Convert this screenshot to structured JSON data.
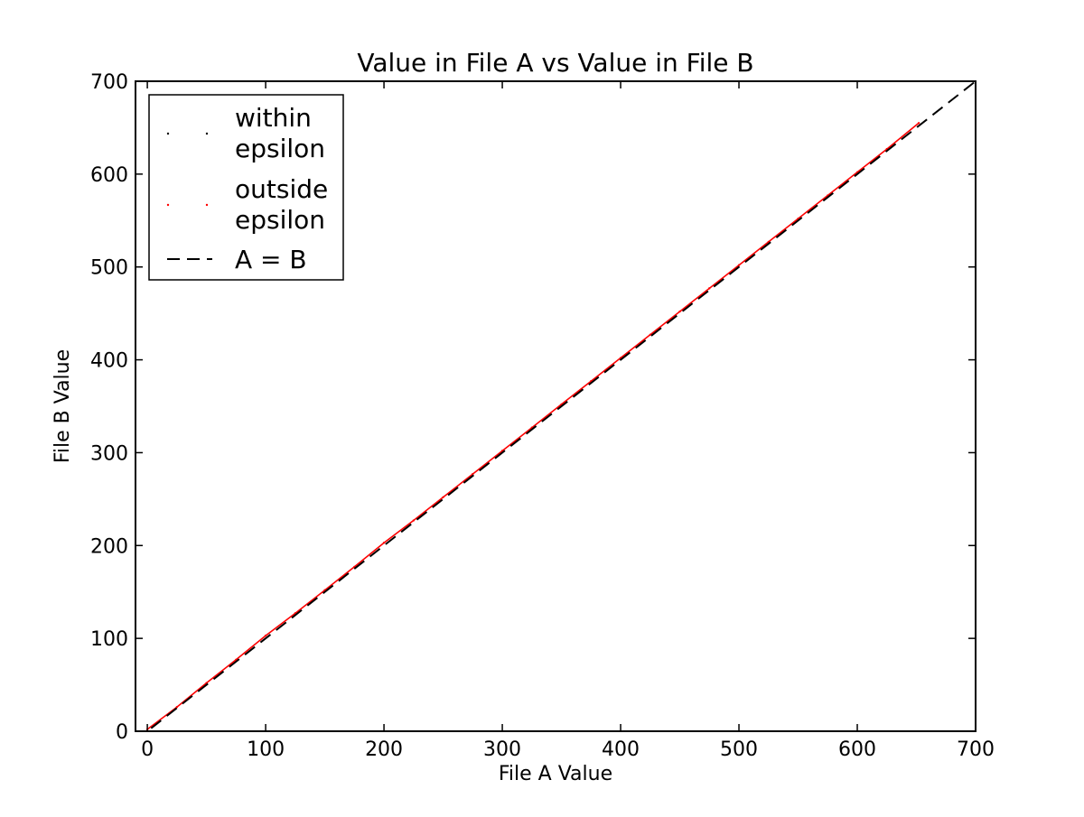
{
  "chart_data": {
    "type": "scatter",
    "title": "Value in File A vs Value in File B",
    "xlabel": "File A Value",
    "ylabel": "File B Value",
    "xlim": [
      -10,
      700
    ],
    "ylim": [
      0,
      700
    ],
    "xticks": [
      0,
      100,
      200,
      300,
      400,
      500,
      600,
      700
    ],
    "yticks": [
      0,
      100,
      200,
      300,
      400,
      500,
      600,
      700
    ],
    "grid": false,
    "legend_position": "top-left",
    "series": [
      {
        "name": "within\nepsilon",
        "marker": "point",
        "color": "#000000",
        "x": [],
        "y": []
      },
      {
        "name": "outside\nepsilon",
        "marker": "point",
        "color": "#ff0000",
        "x": [
          0,
          25,
          50,
          75,
          100,
          125,
          150,
          175,
          200,
          225,
          250,
          275,
          300,
          325,
          350,
          375,
          400,
          425,
          450,
          475,
          500,
          525,
          550,
          575,
          600,
          625,
          652
        ],
        "y": [
          2,
          26,
          52,
          77,
          103,
          127,
          152,
          177,
          203,
          227,
          252,
          277,
          302,
          327,
          352,
          377,
          402,
          427,
          452,
          477,
          502,
          527,
          552,
          577,
          602,
          627,
          655
        ]
      },
      {
        "name": "A = B",
        "style": "dashed-line",
        "color": "#000000",
        "x": [
          -10,
          700
        ],
        "y": [
          -10,
          700
        ]
      }
    ]
  }
}
